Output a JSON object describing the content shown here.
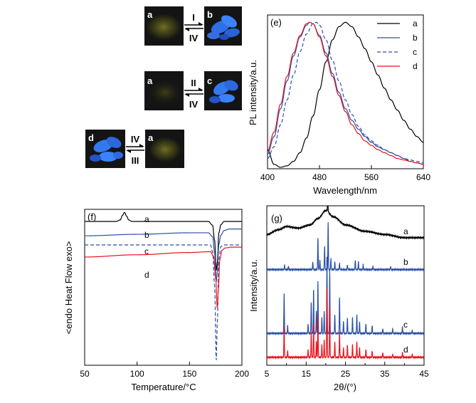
{
  "colors": {
    "a": "#000000",
    "b": "#2b4fa6",
    "c": "#2b4fa6",
    "d": "#e8131d",
    "photo_dark": "#141414",
    "glow_yellow": "#6d6b22",
    "glow_blue": "#2b6de0"
  },
  "photos": {
    "rows": [
      {
        "left_tag": "a",
        "right_tag": "b",
        "forward": "I",
        "backward": "IV"
      },
      {
        "left_tag": "a",
        "right_tag": "c",
        "forward": "II",
        "backward": "IV"
      },
      {
        "left_tag": "d",
        "right_tag": "a",
        "forward": "IV",
        "backward": "III"
      }
    ]
  },
  "chart_data": [
    {
      "panel": "(e)",
      "type": "line",
      "xlabel": "Wavelength/nm",
      "ylabel": "PL intensity/a.u.",
      "xlim": [
        400,
        640
      ],
      "xticks": [
        "400",
        "480",
        "560",
        "640"
      ],
      "ylim": [
        0,
        1.05
      ],
      "legend_position": "top-right",
      "legend": [
        "a",
        "b",
        "c",
        "d"
      ],
      "series": [
        {
          "name": "a",
          "style": "solid",
          "x": [
            400,
            410,
            420,
            430,
            440,
            450,
            460,
            470,
            480,
            490,
            500,
            510,
            520,
            530,
            540,
            550,
            560,
            570,
            580,
            590,
            600,
            610,
            620,
            630,
            640
          ],
          "y": [
            0.13,
            0.03,
            0.01,
            0.02,
            0.05,
            0.11,
            0.21,
            0.36,
            0.54,
            0.73,
            0.88,
            0.97,
            1.0,
            0.97,
            0.9,
            0.82,
            0.73,
            0.64,
            0.55,
            0.47,
            0.4,
            0.33,
            0.27,
            0.22,
            0.18
          ]
        },
        {
          "name": "b",
          "style": "solid",
          "x": [
            400,
            410,
            420,
            430,
            440,
            450,
            460,
            465,
            470,
            480,
            490,
            500,
            510,
            520,
            530,
            540,
            550,
            560,
            570,
            580,
            590,
            600,
            610,
            620,
            630,
            640
          ],
          "y": [
            0.1,
            0.22,
            0.41,
            0.6,
            0.77,
            0.9,
            0.98,
            1.0,
            0.99,
            0.91,
            0.79,
            0.65,
            0.52,
            0.41,
            0.33,
            0.27,
            0.22,
            0.18,
            0.15,
            0.13,
            0.11,
            0.09,
            0.07,
            0.05,
            0.04,
            0.03
          ]
        },
        {
          "name": "c",
          "style": "dashed",
          "x": [
            400,
            410,
            420,
            430,
            440,
            450,
            460,
            470,
            475,
            480,
            490,
            500,
            510,
            520,
            530,
            540,
            550,
            560,
            570,
            580,
            590,
            600,
            610,
            620,
            630,
            640
          ],
          "y": [
            0.07,
            0.15,
            0.3,
            0.47,
            0.64,
            0.8,
            0.92,
            0.99,
            1.0,
            0.98,
            0.88,
            0.74,
            0.6,
            0.47,
            0.37,
            0.29,
            0.23,
            0.19,
            0.16,
            0.13,
            0.11,
            0.09,
            0.07,
            0.06,
            0.05,
            0.04
          ]
        },
        {
          "name": "d",
          "style": "solid",
          "x": [
            400,
            410,
            420,
            430,
            440,
            450,
            460,
            465,
            470,
            480,
            490,
            500,
            510,
            520,
            530,
            540,
            550,
            560,
            570,
            580,
            590,
            600,
            610,
            620,
            630,
            640
          ],
          "y": [
            0.12,
            0.25,
            0.44,
            0.63,
            0.79,
            0.91,
            0.99,
            1.0,
            0.99,
            0.9,
            0.77,
            0.63,
            0.5,
            0.39,
            0.3,
            0.24,
            0.19,
            0.16,
            0.13,
            0.11,
            0.09,
            0.07,
            0.06,
            0.05,
            0.04,
            0.03
          ]
        }
      ]
    },
    {
      "panel": "(f)",
      "type": "line",
      "xlabel": "Temperature/°C",
      "ylabel": "<endo Heat Flow exo>",
      "xlim": [
        50,
        200
      ],
      "xticks": [
        "50",
        "100",
        "150",
        "200"
      ],
      "ylim": [
        -1.9,
        0.16
      ],
      "series": [
        {
          "name": "a",
          "style": "solid",
          "x": [
            50,
            70,
            80,
            84,
            86,
            88,
            90,
            92,
            95,
            100,
            120,
            150,
            168,
            172,
            174,
            175.5,
            176.5,
            178,
            180,
            183,
            188,
            195,
            200
          ],
          "y": [
            0,
            0,
            0,
            0.02,
            0.08,
            0.12,
            0.07,
            0.02,
            0,
            0,
            0,
            0,
            0,
            -0.05,
            -0.25,
            -0.65,
            -0.55,
            -0.15,
            -0.04,
            0,
            0,
            0,
            0
          ]
        },
        {
          "name": "b",
          "style": "solid",
          "x": [
            50,
            100,
            150,
            168,
            172,
            174,
            175.5,
            176.5,
            178,
            180,
            183,
            188,
            195,
            200
          ],
          "y": [
            -0.19,
            -0.17,
            -0.15,
            -0.15,
            -0.2,
            -0.42,
            -0.8,
            -0.67,
            -0.3,
            -0.18,
            -0.12,
            -0.1,
            -0.1,
            -0.1
          ]
        },
        {
          "name": "c",
          "style": "dashed",
          "x": [
            50,
            100,
            150,
            170,
            172,
            174,
            175.5,
            176.5,
            178,
            180,
            183,
            188,
            195,
            200
          ],
          "y": [
            -0.31,
            -0.31,
            -0.31,
            -0.31,
            -0.4,
            -0.85,
            -1.85,
            -1.35,
            -0.5,
            -0.33,
            -0.31,
            -0.31,
            -0.31,
            -0.31
          ]
        },
        {
          "name": "d",
          "style": "solid",
          "x": [
            50,
            100,
            150,
            170,
            173,
            175,
            176.5,
            177.5,
            179,
            181,
            184,
            190,
            200
          ],
          "y": [
            -0.47,
            -0.44,
            -0.41,
            -0.4,
            -0.46,
            -0.75,
            -1.15,
            -0.9,
            -0.5,
            -0.38,
            -0.35,
            -0.34,
            -0.34
          ]
        }
      ]
    },
    {
      "panel": "(g)",
      "type": "line",
      "xlabel": "2θ/(°)",
      "ylabel": "Intensity/a.u.",
      "xlim": [
        5,
        45
      ],
      "xticks": [
        "5",
        "15",
        "25",
        "35",
        "45"
      ],
      "minor_xticks": [
        10,
        20,
        30,
        40
      ],
      "ylim": [
        0,
        1
      ],
      "series": [
        {
          "name": "a",
          "style": "solid",
          "offset": 0.8,
          "background": [
            [
              5,
              0.02
            ],
            [
              8,
              0.05
            ],
            [
              10,
              0.07
            ],
            [
              13,
              0.06
            ],
            [
              16,
              0.08
            ],
            [
              18,
              0.12
            ],
            [
              20,
              0.17
            ],
            [
              22,
              0.13
            ],
            [
              25,
              0.08
            ],
            [
              30,
              0.04
            ],
            [
              35,
              0.02
            ],
            [
              40,
              0.0
            ],
            [
              45,
              0.0
            ]
          ],
          "peaks": [
            [
              20.5,
              0.1
            ]
          ]
        },
        {
          "name": "b",
          "style": "solid",
          "offset": 0.6,
          "background": [
            [
              5,
              0.0
            ],
            [
              45,
              0.0
            ]
          ],
          "peaks": [
            [
              9.5,
              0.03
            ],
            [
              10.5,
              0.02
            ],
            [
              16.7,
              0.05
            ],
            [
              18.0,
              0.2
            ],
            [
              18.5,
              0.06
            ],
            [
              19.7,
              0.15
            ],
            [
              20.6,
              0.3
            ],
            [
              21.3,
              0.07
            ],
            [
              22.3,
              0.05
            ],
            [
              23.5,
              0.04
            ],
            [
              25.5,
              0.03
            ],
            [
              27.5,
              0.06
            ],
            [
              28.3,
              0.05
            ],
            [
              29.5,
              0.03
            ],
            [
              32.0,
              0.02
            ],
            [
              36.5,
              0.02
            ]
          ]
        },
        {
          "name": "c",
          "style": "solid",
          "offset": 0.2,
          "background": [
            [
              5,
              0.0
            ],
            [
              45,
              0.0
            ]
          ],
          "peaks": [
            [
              9.4,
              0.25
            ],
            [
              10.3,
              0.05
            ],
            [
              15.5,
              0.06
            ],
            [
              16.3,
              0.2
            ],
            [
              16.9,
              0.28
            ],
            [
              17.6,
              0.14
            ],
            [
              18.0,
              0.33
            ],
            [
              19.0,
              0.1
            ],
            [
              19.6,
              0.14
            ],
            [
              20.3,
              0.5
            ],
            [
              21.0,
              0.4
            ],
            [
              22.3,
              0.12
            ],
            [
              23.5,
              0.23
            ],
            [
              24.5,
              0.08
            ],
            [
              25.5,
              0.1
            ],
            [
              26.8,
              0.1
            ],
            [
              27.9,
              0.12
            ],
            [
              28.6,
              0.07
            ],
            [
              30.2,
              0.06
            ],
            [
              31.8,
              0.05
            ],
            [
              34.5,
              0.03
            ],
            [
              37.0,
              0.03
            ],
            [
              39.5,
              0.04
            ],
            [
              42.0,
              0.02
            ]
          ]
        },
        {
          "name": "d",
          "style": "solid",
          "offset": 0.05,
          "background": [
            [
              5,
              0.0
            ],
            [
              45,
              0.0
            ]
          ],
          "peaks": [
            [
              9.4,
              0.2
            ],
            [
              10.3,
              0.04
            ],
            [
              15.5,
              0.05
            ],
            [
              16.3,
              0.16
            ],
            [
              16.9,
              0.22
            ],
            [
              17.6,
              0.1
            ],
            [
              18.0,
              0.26
            ],
            [
              19.0,
              0.08
            ],
            [
              19.6,
              0.11
            ],
            [
              20.3,
              0.45
            ],
            [
              21.0,
              0.32
            ],
            [
              22.3,
              0.1
            ],
            [
              23.5,
              0.16
            ],
            [
              24.5,
              0.06
            ],
            [
              25.5,
              0.08
            ],
            [
              26.8,
              0.08
            ],
            [
              27.9,
              0.1
            ],
            [
              28.6,
              0.06
            ],
            [
              30.2,
              0.05
            ],
            [
              31.8,
              0.04
            ],
            [
              34.5,
              0.03
            ],
            [
              37.0,
              0.02
            ],
            [
              39.5,
              0.03
            ],
            [
              42.0,
              0.02
            ]
          ]
        }
      ]
    }
  ]
}
